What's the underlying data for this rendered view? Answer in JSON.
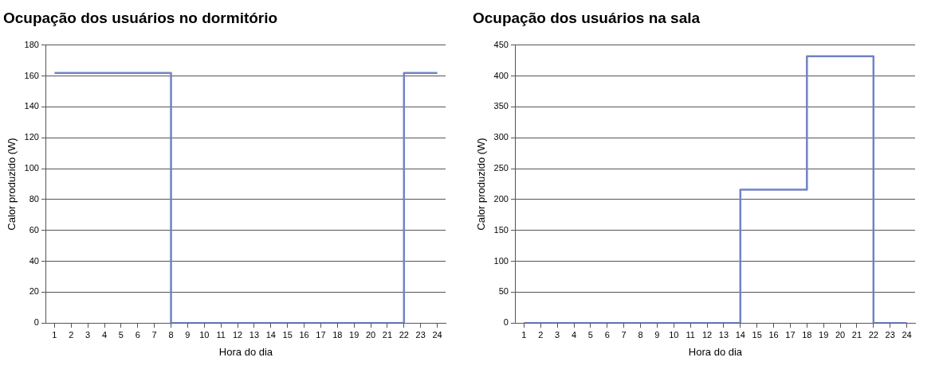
{
  "chart_data": [
    {
      "type": "step",
      "title": "Ocupação dos usuários no dormitório",
      "xlabel": "Hora do dia",
      "ylabel": "Calor produzido (W)",
      "x": [
        1,
        2,
        3,
        4,
        5,
        6,
        7,
        8,
        9,
        10,
        11,
        12,
        13,
        14,
        15,
        16,
        17,
        18,
        19,
        20,
        21,
        22,
        23,
        24
      ],
      "series": [
        {
          "color": "#7083c8",
          "values": [
            162,
            162,
            162,
            162,
            162,
            162,
            162,
            0,
            0,
            0,
            0,
            0,
            0,
            0,
            0,
            0,
            0,
            0,
            0,
            0,
            0,
            162,
            162,
            162
          ]
        }
      ],
      "xlim": [
        0.5,
        24.5
      ],
      "xticks": [
        1,
        2,
        3,
        4,
        5,
        6,
        7,
        8,
        9,
        10,
        11,
        12,
        13,
        14,
        15,
        16,
        17,
        18,
        19,
        20,
        21,
        22,
        23,
        24
      ],
      "ylim": [
        0,
        180
      ],
      "yticks": [
        0,
        20,
        40,
        60,
        80,
        100,
        120,
        140,
        160,
        180
      ],
      "grid": "y",
      "legend": false,
      "marker": "none"
    },
    {
      "type": "step",
      "title": "Ocupação dos usuários na sala",
      "xlabel": "Hora do dia",
      "ylabel": "Calor produzido (W)",
      "x": [
        1,
        2,
        3,
        4,
        5,
        6,
        7,
        8,
        9,
        10,
        11,
        12,
        13,
        14,
        15,
        16,
        17,
        18,
        19,
        20,
        21,
        22,
        23,
        24
      ],
      "series": [
        {
          "color": "#7083c8",
          "values": [
            0,
            0,
            0,
            0,
            0,
            0,
            0,
            0,
            0,
            0,
            0,
            0,
            0,
            216,
            216,
            216,
            216,
            432,
            432,
            432,
            432,
            0,
            0,
            0
          ]
        }
      ],
      "xlim": [
        0.5,
        24.5
      ],
      "xticks": [
        1,
        2,
        3,
        4,
        5,
        6,
        7,
        8,
        9,
        10,
        11,
        12,
        13,
        14,
        15,
        16,
        17,
        18,
        19,
        20,
        21,
        22,
        23,
        24
      ],
      "ylim": [
        0,
        450
      ],
      "yticks": [
        0,
        50,
        100,
        150,
        200,
        250,
        300,
        350,
        400,
        450
      ],
      "grid": "y",
      "legend": false,
      "marker": "none"
    }
  ]
}
